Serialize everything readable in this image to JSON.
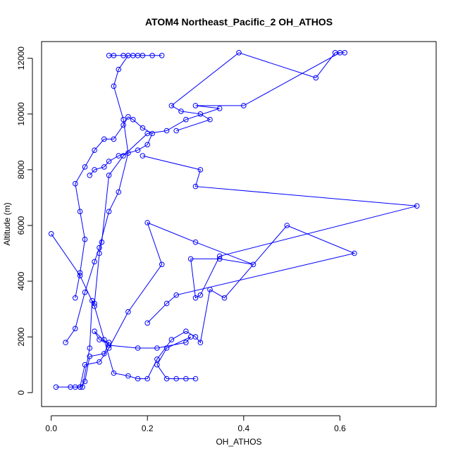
{
  "chart_data": {
    "type": "line",
    "title": "ATOM4 Northeast_Pacific_2 OH_ATHOS",
    "xlabel": "OH_ATHOS",
    "ylabel": "Altitude (m)",
    "xlim": [
      -0.02,
      0.8
    ],
    "ylim": [
      -500,
      12600
    ],
    "xticks": [
      0.0,
      0.2,
      0.4,
      0.6
    ],
    "yticks": [
      0,
      2000,
      4000,
      6000,
      8000,
      10000,
      12000
    ],
    "grid": false,
    "legend": "none",
    "color": "#0000ff",
    "marker": "open-circle",
    "series": [
      {
        "x": [
          0.01,
          0.04,
          0.065,
          0.08,
          0.085,
          0.09,
          0.1,
          0.105,
          0.12,
          0.15,
          0.2,
          0.24,
          0.28,
          0.35,
          0.3,
          0.4,
          0.6,
          0.61,
          0.59,
          0.55,
          0.39,
          0.25,
          0.27,
          0.31,
          0.33,
          0.26
        ],
        "y": [
          200,
          200,
          200,
          1600,
          3300,
          3200,
          5000,
          5400,
          7800,
          8500,
          9300,
          9400,
          9800,
          10200,
          10300,
          10300,
          12200,
          12200,
          12200,
          11300,
          12200,
          10300,
          10100,
          10000,
          9800,
          9400
        ]
      },
      {
        "x": [
          0.05,
          0.06,
          0.07,
          0.1,
          0.12,
          0.16,
          0.23,
          0.2,
          0.3,
          0.42,
          0.35,
          0.29,
          0.3,
          0.31,
          0.35,
          0.76,
          0.3,
          0.31,
          0.19
        ],
        "y": [
          200,
          200,
          1000,
          1100,
          1600,
          2900,
          4600,
          6100,
          5400,
          4600,
          4800,
          4800,
          3400,
          3500,
          4900,
          6700,
          7400,
          8000,
          8500
        ]
      },
      {
        "x": [
          0.0,
          0.06,
          0.09,
          0.11,
          0.13,
          0.16,
          0.18,
          0.2,
          0.22,
          0.25,
          0.28,
          0.3,
          0.31,
          0.33,
          0.36,
          0.49,
          0.63,
          0.26,
          0.24,
          0.2
        ],
        "y": [
          5700,
          4200,
          3100,
          1900,
          700,
          600,
          500,
          500,
          1200,
          1900,
          2200,
          2000,
          1800,
          3700,
          3400,
          6000,
          5000,
          3500,
          3200,
          2500
        ]
      },
      {
        "x": [
          0.03,
          0.05,
          0.07,
          0.09,
          0.1,
          0.12,
          0.14,
          0.16,
          0.15,
          0.13,
          0.14,
          0.16,
          0.17,
          0.15,
          0.13,
          0.12,
          0.18,
          0.19,
          0.21,
          0.23
        ],
        "y": [
          1800,
          2300,
          3600,
          4700,
          5200,
          6500,
          7200,
          8600,
          9800,
          11000,
          11600,
          12100,
          12100,
          12100,
          12100,
          12100,
          12100,
          12100,
          12100,
          12100
        ]
      },
      {
        "x": [
          0.06,
          0.07,
          0.08,
          0.11,
          0.12,
          0.1,
          0.09,
          0.12,
          0.18,
          0.22,
          0.28,
          0.29,
          0.24,
          0.22,
          0.24,
          0.26,
          0.28,
          0.3
        ],
        "y": [
          200,
          400,
          1300,
          1400,
          1800,
          1900,
          2200,
          1700,
          1600,
          1600,
          1800,
          2000,
          1600,
          1000,
          500,
          500,
          500,
          500
        ]
      },
      {
        "x": [
          0.05,
          0.06,
          0.07,
          0.06,
          0.05,
          0.07,
          0.09,
          0.11,
          0.13,
          0.15,
          0.16,
          0.17,
          0.19,
          0.21,
          0.2,
          0.18,
          0.14,
          0.12,
          0.11,
          0.09,
          0.08
        ],
        "y": [
          3400,
          4300,
          5500,
          6500,
          7500,
          8100,
          8700,
          9100,
          9100,
          9600,
          9900,
          9800,
          9500,
          9300,
          8900,
          8700,
          8500,
          8300,
          8100,
          8000,
          7800
        ]
      }
    ]
  }
}
